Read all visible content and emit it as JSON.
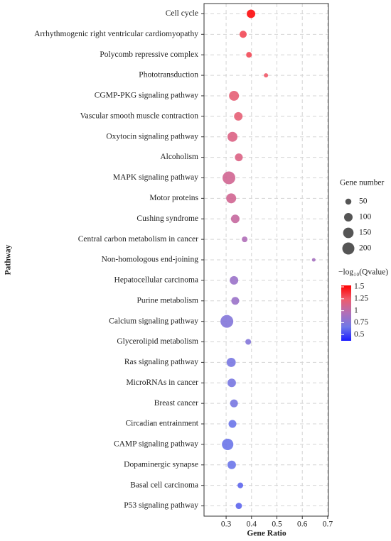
{
  "chart_data": {
    "type": "bubble",
    "x_label": "Gene Ratio",
    "y_label": "Pathway",
    "categories": [
      "Cell cycle",
      "Arrhythmogenic right ventricular cardiomyopathy",
      "Polycomb repressive complex",
      "Phototransduction",
      "CGMP-PKG signaling pathway",
      "Vascular smooth muscle contraction",
      "Oxytocin signaling pathway",
      "Alcoholism",
      "MAPK signaling pathway",
      "Motor proteins",
      "Cushing syndrome",
      "Central carbon metabolism in cancer",
      "Non-homologous end-joining",
      "Hepatocellular carcinoma",
      "Purine metabolism",
      "Calcium signaling pathway",
      "Glycerolipid metabolism",
      "Ras signaling pathway",
      "MicroRNAs in cancer",
      "Breast cancer",
      "Circadian entrainment",
      "CAMP signaling pathway",
      "Dopaminergic synapse",
      "Basal cell carcinoma",
      "P53 signaling pathway"
    ],
    "values": [
      0.398,
      0.367,
      0.39,
      0.457,
      0.331,
      0.348,
      0.325,
      0.35,
      0.311,
      0.32,
      0.336,
      0.373,
      0.645,
      0.331,
      0.336,
      0.303,
      0.387,
      0.32,
      0.322,
      0.331,
      0.325,
      0.306,
      0.322,
      0.356,
      0.35
    ],
    "sizes": [
      100,
      70,
      45,
      25,
      135,
      100,
      135,
      85,
      225,
      135,
      100,
      45,
      18,
      100,
      85,
      225,
      45,
      115,
      100,
      85,
      85,
      180,
      100,
      45,
      55
    ],
    "neg_log10_q": [
      1.5,
      1.3,
      1.3,
      1.25,
      1.2,
      1.2,
      1.15,
      1.15,
      1.1,
      1.1,
      1.05,
      0.95,
      0.9,
      0.85,
      0.85,
      0.75,
      0.75,
      0.7,
      0.7,
      0.7,
      0.65,
      0.65,
      0.65,
      0.6,
      0.6
    ],
    "xlim": [
      0.213,
      0.703
    ],
    "xticks": [
      0.3,
      0.4,
      0.5,
      0.6,
      0.7
    ],
    "grid": true,
    "size_title": "Gene number",
    "size_legend": [
      50,
      100,
      150,
      200
    ],
    "color_title": "−log₁₀(Qvalue)",
    "clim": [
      0.37,
      1.53
    ],
    "cticks": [
      1.5,
      1.25,
      1,
      0.75,
      0.5
    ],
    "colormap": [
      "#1a1aff",
      "#6f78e8",
      "#b06fb8",
      "#ee5c6c",
      "#ff0000"
    ]
  }
}
